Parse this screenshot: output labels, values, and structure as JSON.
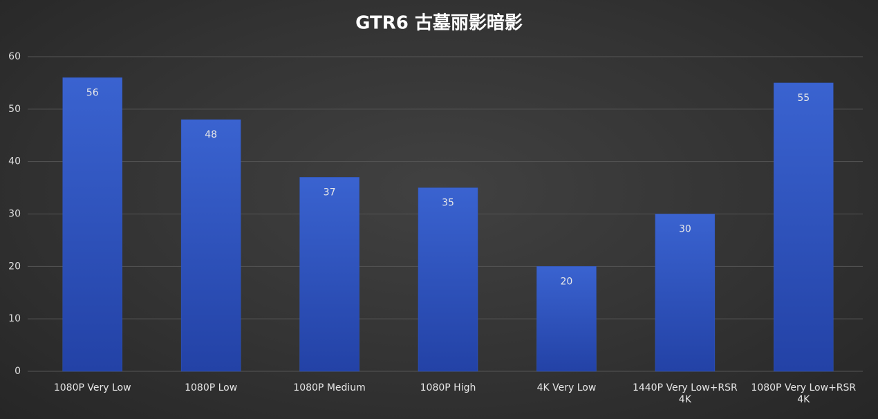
{
  "chart_data": {
    "type": "bar",
    "title": "GTR6 古墓丽影暗影",
    "categories": [
      "1080P Very Low",
      "1080P Low",
      "1080P Medium",
      "1080P High",
      "4K Very Low",
      "1440P Very Low+RSR\n4K",
      "1080P Very Low+RSR\n4K"
    ],
    "values": [
      56,
      48,
      37,
      35,
      20,
      30,
      55
    ],
    "color": "#3159c4",
    "ylim": [
      0,
      60
    ],
    "yticks": [
      0,
      10,
      20,
      30,
      40,
      50,
      60
    ],
    "grid": true
  }
}
